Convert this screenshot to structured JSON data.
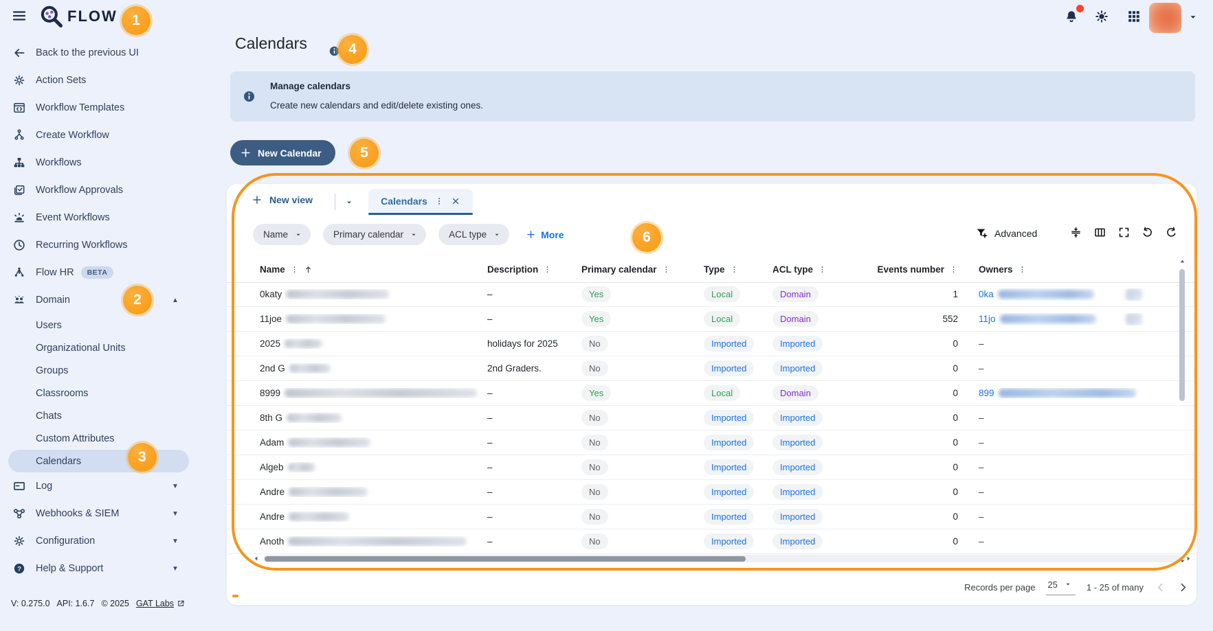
{
  "topbar": {
    "brand": "FLOW"
  },
  "annotations": {
    "badges": [
      "1",
      "2",
      "3",
      "4",
      "5",
      "6"
    ]
  },
  "sidebar": {
    "items": [
      {
        "label": "Back to the previous UI",
        "icon": "back-arrow-icon",
        "sub": false
      },
      {
        "label": "Action Sets",
        "icon": "action-sets-icon",
        "sub": false
      },
      {
        "label": "Workflow Templates",
        "icon": "workflow-templates-icon",
        "sub": false
      },
      {
        "label": "Create Workflow",
        "icon": "create-workflow-icon",
        "sub": false
      },
      {
        "label": "Workflows",
        "icon": "workflows-icon",
        "sub": false
      },
      {
        "label": "Workflow Approvals",
        "icon": "workflow-approvals-icon",
        "sub": false
      },
      {
        "label": "Event Workflows",
        "icon": "event-workflows-icon",
        "sub": false
      },
      {
        "label": "Recurring Workflows",
        "icon": "recurring-workflows-icon",
        "sub": false
      },
      {
        "label": "Flow HR",
        "icon": "flow-hr-icon",
        "badge": "BETA",
        "sub": false
      },
      {
        "label": "Domain",
        "icon": "domain-icon",
        "chevron": "up",
        "sub": false
      },
      {
        "label": "Users",
        "sub": true
      },
      {
        "label": "Organizational Units",
        "sub": true
      },
      {
        "label": "Groups",
        "sub": true
      },
      {
        "label": "Classrooms",
        "sub": true
      },
      {
        "label": "Chats",
        "sub": true
      },
      {
        "label": "Custom Attributes",
        "sub": true
      },
      {
        "label": "Calendars",
        "sub": true,
        "active": true
      },
      {
        "label": "Log",
        "icon": "log-icon",
        "chevron": "down",
        "sub": false
      },
      {
        "label": "Webhooks & SIEM",
        "icon": "webhooks-icon",
        "chevron": "down",
        "sub": false
      },
      {
        "label": "Configuration",
        "icon": "configuration-icon",
        "chevron": "down",
        "sub": false
      },
      {
        "label": "Help & Support",
        "icon": "help-icon",
        "chevron": "down",
        "sub": false
      }
    ],
    "footer": {
      "version": "V: 0.275.0",
      "api": "API: 1.6.7",
      "copyright": "© 2025",
      "link": "GAT Labs"
    }
  },
  "page": {
    "title": "Calendars",
    "banner": {
      "title": "Manage calendars",
      "body": "Create new calendars and edit/delete existing ones."
    },
    "new_calendar_button": "New Calendar"
  },
  "views": {
    "new_view": "New view",
    "active_tab": "Calendars"
  },
  "filters": {
    "chips": [
      "Name",
      "Primary calendar",
      "ACL type"
    ],
    "more": "More"
  },
  "toolbar": {
    "advanced": "Advanced",
    "icons": [
      "row-height-icon",
      "columns-icon",
      "fullscreen-icon",
      "undo-icon",
      "refresh-icon"
    ]
  },
  "table": {
    "columns": [
      {
        "key": "name",
        "label": "Name",
        "sorted": true
      },
      {
        "key": "description",
        "label": "Description"
      },
      {
        "key": "primary",
        "label": "Primary calendar"
      },
      {
        "key": "type",
        "label": "Type"
      },
      {
        "key": "acl",
        "label": "ACL type"
      },
      {
        "key": "events",
        "label": "Events number"
      },
      {
        "key": "owners",
        "label": "Owners"
      }
    ],
    "rows": [
      {
        "name": "0katy",
        "name_blur": 150,
        "description": "–",
        "primary": "Yes",
        "primary_variant": "green",
        "type": "Local",
        "type_variant": "green",
        "acl": "Domain",
        "acl_variant": "purple",
        "events": "1",
        "owner": "0ka",
        "owner_dash": false,
        "owner_blur": 140,
        "owner_icon": true
      },
      {
        "name": "11joe",
        "name_blur": 145,
        "description": "–",
        "primary": "Yes",
        "primary_variant": "green",
        "type": "Local",
        "type_variant": "green",
        "acl": "Domain",
        "acl_variant": "purple",
        "events": "552",
        "owner": "11jo",
        "owner_dash": false,
        "owner_blur": 140,
        "owner_icon": true
      },
      {
        "name": "2025",
        "name_blur": 55,
        "description": "holidays for 2025",
        "primary": "No",
        "primary_variant": "gray",
        "type": "Imported",
        "type_variant": "blue",
        "acl": "Imported",
        "acl_variant": "blue",
        "events": "0",
        "owner": "",
        "owner_dash": true,
        "owner_blur": 0,
        "owner_icon": false
      },
      {
        "name": "2nd G",
        "name_blur": 60,
        "description": "2nd Graders.",
        "primary": "No",
        "primary_variant": "gray",
        "type": "Imported",
        "type_variant": "blue",
        "acl": "Imported",
        "acl_variant": "blue",
        "events": "0",
        "owner": "",
        "owner_dash": true,
        "owner_blur": 0,
        "owner_icon": false
      },
      {
        "name": "8999",
        "name_blur": 280,
        "description": "–",
        "primary": "Yes",
        "primary_variant": "green",
        "type": "Local",
        "type_variant": "green",
        "acl": "Domain",
        "acl_variant": "purple",
        "events": "0",
        "owner": "899",
        "owner_dash": false,
        "owner_blur": 200,
        "owner_icon": false
      },
      {
        "name": "8th G",
        "name_blur": 80,
        "description": "–",
        "primary": "No",
        "primary_variant": "gray",
        "type": "Imported",
        "type_variant": "blue",
        "acl": "Imported",
        "acl_variant": "blue",
        "events": "0",
        "owner": "",
        "owner_dash": true,
        "owner_blur": 0,
        "owner_icon": false
      },
      {
        "name": "Adam",
        "name_blur": 120,
        "description": "–",
        "primary": "No",
        "primary_variant": "gray",
        "type": "Imported",
        "type_variant": "blue",
        "acl": "Imported",
        "acl_variant": "blue",
        "events": "0",
        "owner": "",
        "owner_dash": true,
        "owner_blur": 0,
        "owner_icon": false
      },
      {
        "name": "Algeb",
        "name_blur": 40,
        "description": "–",
        "primary": "No",
        "primary_variant": "gray",
        "type": "Imported",
        "type_variant": "blue",
        "acl": "Imported",
        "acl_variant": "blue",
        "events": "0",
        "owner": "",
        "owner_dash": true,
        "owner_blur": 0,
        "owner_icon": false
      },
      {
        "name": "Andre",
        "name_blur": 115,
        "description": "–",
        "primary": "No",
        "primary_variant": "gray",
        "type": "Imported",
        "type_variant": "blue",
        "acl": "Imported",
        "acl_variant": "blue",
        "events": "0",
        "owner": "",
        "owner_dash": true,
        "owner_blur": 0,
        "owner_icon": false
      },
      {
        "name": "Andre",
        "name_blur": 88,
        "description": "–",
        "primary": "No",
        "primary_variant": "gray",
        "type": "Imported",
        "type_variant": "blue",
        "acl": "Imported",
        "acl_variant": "blue",
        "events": "0",
        "owner": "",
        "owner_dash": true,
        "owner_blur": 0,
        "owner_icon": false
      },
      {
        "name": "Anoth",
        "name_blur": 260,
        "description": "–",
        "primary": "No",
        "primary_variant": "gray",
        "type": "Imported",
        "type_variant": "blue",
        "acl": "Imported",
        "acl_variant": "blue",
        "events": "0",
        "owner": "",
        "owner_dash": true,
        "owner_blur": 0,
        "owner_icon": false
      }
    ]
  },
  "pagination": {
    "records_label": "Records per page",
    "page_size": "25",
    "range": "1 - 25 of many"
  }
}
